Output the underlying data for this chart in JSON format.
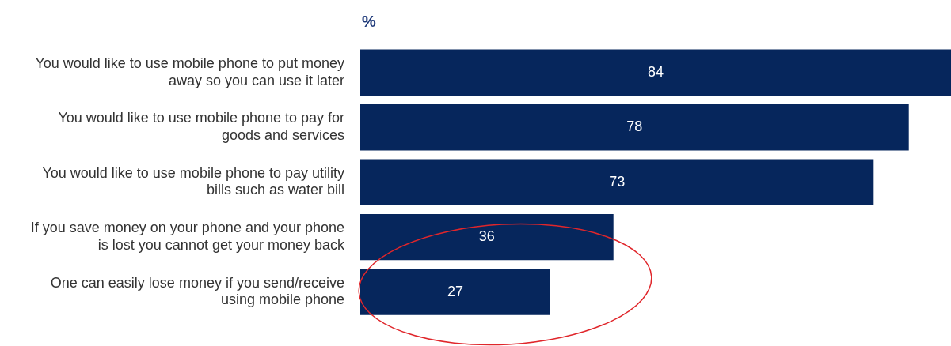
{
  "chart_data": {
    "type": "bar",
    "orientation": "horizontal",
    "title": "%",
    "categories": [
      "You would like to use mobile phone to put money away so you can use it later",
      "You would like to use mobile phone to pay for goods and services",
      "You would like to use mobile phone to pay utility bills such as water bill",
      "If you save money on your phone and your phone is lost you cannot get your money back",
      "One can easily lose money if you send/receive using mobile phone"
    ],
    "values": [
      84,
      78,
      73,
      36,
      27
    ],
    "color": "#06265c",
    "data_labels": true,
    "legend": false
  }
}
